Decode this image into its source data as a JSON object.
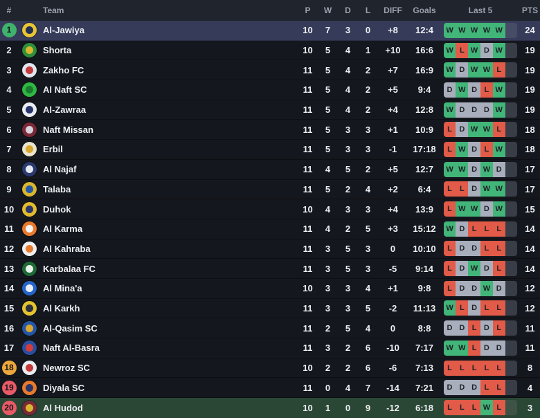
{
  "table": {
    "columns": {
      "rank": "#",
      "team": "Team",
      "p": "P",
      "w": "W",
      "d": "D",
      "l": "L",
      "diff": "DIFF",
      "goals": "Goals",
      "last5": "Last 5",
      "pts": "PTS"
    },
    "colors": {
      "win": "#42b578",
      "loss": "#e25a48",
      "draw": "#a9aebc",
      "pending_segment": "#383d47",
      "leader_row_bg": "#353b58",
      "relegation_row_bg": "#2a4735",
      "rank_badge_green": "#3fb36b",
      "rank_badge_orange": "#eda73c",
      "rank_badge_red": "#e85a65",
      "header_bg": "#20242d",
      "row_bg": "#14171d",
      "text": "#edeff3",
      "header_text": "#9aa1ad"
    },
    "standings": [
      {
        "rank": 1,
        "rank_badge": "green",
        "highlight": "leader",
        "team": "Al-Jawiya",
        "logo_colors": [
          "#e8c537",
          "#233054"
        ],
        "p": 10,
        "w": 7,
        "d": 3,
        "l": 0,
        "diff": "+8",
        "goals": "12:4",
        "last5": [
          "W",
          "W",
          "W",
          "W",
          "W"
        ],
        "pts": 24
      },
      {
        "rank": 2,
        "rank_badge": null,
        "highlight": null,
        "team": "Shorta",
        "logo_colors": [
          "#2e8f3c",
          "#d8b62e"
        ],
        "p": 10,
        "w": 5,
        "d": 4,
        "l": 1,
        "diff": "+10",
        "goals": "16:6",
        "last5": [
          "W",
          "L",
          "W",
          "D",
          "W"
        ],
        "pts": 19
      },
      {
        "rank": 3,
        "rank_badge": null,
        "highlight": null,
        "team": "Zakho FC",
        "logo_colors": [
          "#dfe6ee",
          "#c43a3a"
        ],
        "p": 11,
        "w": 5,
        "d": 4,
        "l": 2,
        "diff": "+7",
        "goals": "16:9",
        "last5": [
          "W",
          "D",
          "W",
          "W",
          "L"
        ],
        "pts": 19
      },
      {
        "rank": 4,
        "rank_badge": null,
        "highlight": null,
        "team": "Al Naft SC",
        "logo_colors": [
          "#2fb844",
          "#1c7a2e"
        ],
        "p": 11,
        "w": 5,
        "d": 4,
        "l": 2,
        "diff": "+5",
        "goals": "9:4",
        "last5": [
          "D",
          "W",
          "D",
          "L",
          "W"
        ],
        "pts": 19
      },
      {
        "rank": 5,
        "rank_badge": null,
        "highlight": null,
        "team": "Al-Zawraa",
        "logo_colors": [
          "#e9edf2",
          "#27356b"
        ],
        "p": 11,
        "w": 5,
        "d": 4,
        "l": 2,
        "diff": "+4",
        "goals": "12:8",
        "last5": [
          "W",
          "D",
          "D",
          "D",
          "W"
        ],
        "pts": 19
      },
      {
        "rank": 6,
        "rank_badge": null,
        "highlight": null,
        "team": "Naft Missan",
        "logo_colors": [
          "#7a2937",
          "#d8d3dc"
        ],
        "p": 11,
        "w": 5,
        "d": 3,
        "l": 3,
        "diff": "+1",
        "goals": "10:9",
        "last5": [
          "L",
          "D",
          "W",
          "W",
          "L"
        ],
        "pts": 18
      },
      {
        "rank": 7,
        "rank_badge": null,
        "highlight": null,
        "team": "Erbil",
        "logo_colors": [
          "#e9e4cf",
          "#d9a62e"
        ],
        "p": 11,
        "w": 5,
        "d": 3,
        "l": 3,
        "diff": "-1",
        "goals": "17:18",
        "last5": [
          "L",
          "W",
          "D",
          "L",
          "W"
        ],
        "pts": 18
      },
      {
        "rank": 8,
        "rank_badge": null,
        "highlight": null,
        "team": "Al Najaf",
        "logo_colors": [
          "#2a3a6e",
          "#e4e8f0"
        ],
        "p": 11,
        "w": 4,
        "d": 5,
        "l": 2,
        "diff": "+5",
        "goals": "12:7",
        "last5": [
          "W",
          "W",
          "D",
          "W",
          "D"
        ],
        "pts": 17
      },
      {
        "rank": 9,
        "rank_badge": null,
        "highlight": null,
        "team": "Talaba",
        "logo_colors": [
          "#d9b62f",
          "#2456a8"
        ],
        "p": 11,
        "w": 5,
        "d": 2,
        "l": 4,
        "diff": "+2",
        "goals": "6:4",
        "last5": [
          "L",
          "L",
          "D",
          "W",
          "W"
        ],
        "pts": 17
      },
      {
        "rank": 10,
        "rank_badge": null,
        "highlight": null,
        "team": "Duhok",
        "logo_colors": [
          "#e3bb2f",
          "#27356b"
        ],
        "p": 10,
        "w": 4,
        "d": 3,
        "l": 3,
        "diff": "+4",
        "goals": "13:9",
        "last5": [
          "L",
          "W",
          "W",
          "D",
          "W"
        ],
        "pts": 15
      },
      {
        "rank": 11,
        "rank_badge": null,
        "highlight": null,
        "team": "Al Karma",
        "logo_colors": [
          "#e87a2e",
          "#f4f4f4"
        ],
        "p": 11,
        "w": 4,
        "d": 2,
        "l": 5,
        "diff": "+3",
        "goals": "15:12",
        "last5": [
          "W",
          "D",
          "L",
          "L",
          "L"
        ],
        "pts": 14
      },
      {
        "rank": 12,
        "rank_badge": null,
        "highlight": null,
        "team": "Al Kahraba",
        "logo_colors": [
          "#eef0f2",
          "#e87a2e"
        ],
        "p": 11,
        "w": 3,
        "d": 5,
        "l": 3,
        "diff": "0",
        "goals": "10:10",
        "last5": [
          "L",
          "D",
          "D",
          "L",
          "L"
        ],
        "pts": 14
      },
      {
        "rank": 13,
        "rank_badge": null,
        "highlight": null,
        "team": "Karbalaa FC",
        "logo_colors": [
          "#1e6b38",
          "#e9efe9"
        ],
        "p": 11,
        "w": 3,
        "d": 5,
        "l": 3,
        "diff": "-5",
        "goals": "9:14",
        "last5": [
          "L",
          "D",
          "W",
          "D",
          "L"
        ],
        "pts": 14
      },
      {
        "rank": 14,
        "rank_badge": null,
        "highlight": null,
        "team": "Al Mina'a",
        "logo_colors": [
          "#2465c8",
          "#e9eef4"
        ],
        "p": 10,
        "w": 3,
        "d": 3,
        "l": 4,
        "diff": "+1",
        "goals": "9:8",
        "last5": [
          "L",
          "D",
          "D",
          "W",
          "D"
        ],
        "pts": 12
      },
      {
        "rank": 15,
        "rank_badge": null,
        "highlight": null,
        "team": "Al Karkh",
        "logo_colors": [
          "#e3c42f",
          "#2a3040"
        ],
        "p": 11,
        "w": 3,
        "d": 3,
        "l": 5,
        "diff": "-2",
        "goals": "11:13",
        "last5": [
          "W",
          "L",
          "D",
          "L",
          "L"
        ],
        "pts": 12
      },
      {
        "rank": 16,
        "rank_badge": null,
        "highlight": null,
        "team": "Al-Qasim SC",
        "logo_colors": [
          "#2456a8",
          "#d9a62e"
        ],
        "p": 11,
        "w": 2,
        "d": 5,
        "l": 4,
        "diff": "0",
        "goals": "8:8",
        "last5": [
          "D",
          "D",
          "L",
          "D",
          "L"
        ],
        "pts": 11
      },
      {
        "rank": 17,
        "rank_badge": null,
        "highlight": null,
        "team": "Naft Al-Basra",
        "logo_colors": [
          "#2a4fa0",
          "#d23c3c"
        ],
        "p": 11,
        "w": 3,
        "d": 2,
        "l": 6,
        "diff": "-10",
        "goals": "7:17",
        "last5": [
          "W",
          "W",
          "L",
          "D",
          "D"
        ],
        "pts": 11
      },
      {
        "rank": 18,
        "rank_badge": "orange",
        "highlight": null,
        "team": "Newroz SC",
        "logo_colors": [
          "#e9edf2",
          "#c43a3a"
        ],
        "p": 10,
        "w": 2,
        "d": 2,
        "l": 6,
        "diff": "-6",
        "goals": "7:13",
        "last5": [
          "L",
          "L",
          "L",
          "L",
          "L"
        ],
        "pts": 8
      },
      {
        "rank": 19,
        "rank_badge": "red",
        "highlight": null,
        "team": "Diyala SC",
        "logo_colors": [
          "#e87a2e",
          "#27356b"
        ],
        "p": 11,
        "w": 0,
        "d": 4,
        "l": 7,
        "diff": "-14",
        "goals": "7:21",
        "last5": [
          "D",
          "D",
          "D",
          "L",
          "L"
        ],
        "pts": 4
      },
      {
        "rank": 20,
        "rank_badge": "red",
        "highlight": "relegation",
        "team": "Al Hudod",
        "logo_colors": [
          "#7a2937",
          "#d9b62f"
        ],
        "p": 10,
        "w": 1,
        "d": 0,
        "l": 9,
        "diff": "-12",
        "goals": "6:18",
        "last5": [
          "L",
          "L",
          "L",
          "W",
          "L"
        ],
        "pts": 3
      }
    ]
  }
}
